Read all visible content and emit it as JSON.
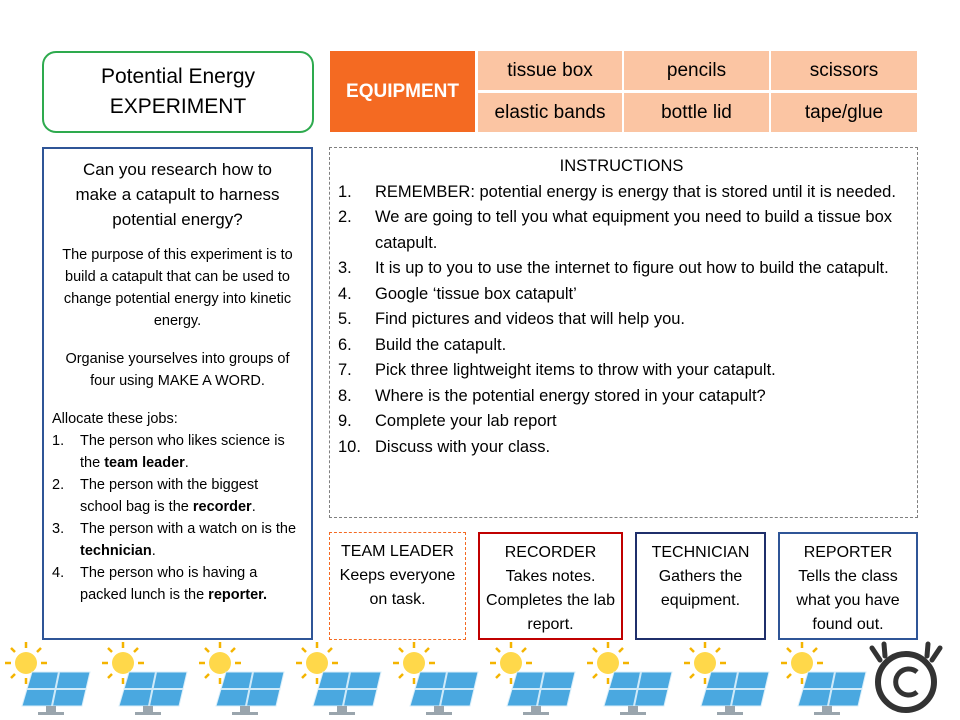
{
  "title": {
    "lines": [
      "Potential Energy",
      "EXPERIMENT"
    ]
  },
  "equipment": {
    "label": "EQUIPMENT",
    "items": [
      "tissue box",
      "pencils",
      "scissors",
      "elastic bands",
      "bottle lid",
      "tape/glue"
    ]
  },
  "left_panel": {
    "question": "Can you research how to make a catapult to harness potential energy?",
    "purpose": "The purpose of this experiment is to build a catapult that can be used to change potential energy into kinetic energy.",
    "organise": "Organise yourselves into groups of four using MAKE A WORD.",
    "jobs_heading": "Allocate these jobs:",
    "jobs": [
      {
        "marker": "1.",
        "text": "The person who likes science is the ",
        "role": "team leader",
        "end": "."
      },
      {
        "marker": "2.",
        "text": "The person with the biggest school bag is the ",
        "role": "recorder",
        "end": "."
      },
      {
        "marker": "3.",
        "text": "The person with a watch on is the ",
        "role": "technician",
        "end": "."
      },
      {
        "marker": "4.",
        "text": "The person who is having a packed lunch is the ",
        "role": "reporter.",
        "end": ""
      }
    ]
  },
  "instructions": {
    "heading": "INSTRUCTIONS",
    "items": [
      {
        "marker": "1.",
        "text": "REMEMBER:  potential energy is energy that is stored until it is needed."
      },
      {
        "marker": "2.",
        "text": "We are going to tell you what equipment you need to build a tissue box catapult."
      },
      {
        "marker": "3.",
        "text": "It is up to you to use the internet to figure out how to build the catapult."
      },
      {
        "marker": "4.",
        "text": "Google ‘tissue box catapult’"
      },
      {
        "marker": "5.",
        "text": "Find pictures and videos that will help you."
      },
      {
        "marker": "6.",
        "text": "Build the catapult."
      },
      {
        "marker": "7.",
        "text": "Pick three lightweight items to throw with your catapult."
      },
      {
        "marker": "8.",
        "text": "Where is the potential energy stored in your catapult?"
      },
      {
        "marker": "9.",
        "text": "Complete your lab report"
      },
      {
        "marker": "10.",
        "text": "Discuss with your class."
      }
    ]
  },
  "roles": [
    {
      "title": "TEAM LEADER",
      "text": "Keeps everyone on task."
    },
    {
      "title": "RECORDER",
      "text": "Takes notes. Completes the lab report."
    },
    {
      "title": "TECHNICIAN",
      "text": "Gathers the equipment."
    },
    {
      "title": "REPORTER",
      "text": "Tells the class what you have found out."
    }
  ]
}
